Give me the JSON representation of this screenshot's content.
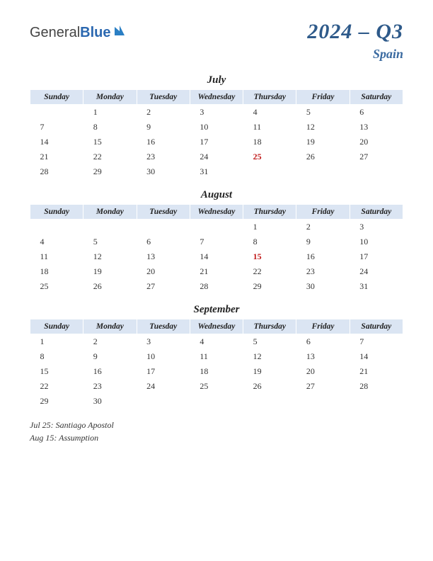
{
  "logo": {
    "part1": "General",
    "part2": "Blue"
  },
  "title": "2024 – Q3",
  "subtitle": "Spain",
  "dayHeaders": [
    "Sunday",
    "Monday",
    "Tuesday",
    "Wednesday",
    "Thursday",
    "Friday",
    "Saturday"
  ],
  "months": [
    {
      "name": "July",
      "weeks": [
        [
          "",
          "1",
          "2",
          "3",
          "4",
          "5",
          "6"
        ],
        [
          "7",
          "8",
          "9",
          "10",
          "11",
          "12",
          "13"
        ],
        [
          "14",
          "15",
          "16",
          "17",
          "18",
          "19",
          "20"
        ],
        [
          "21",
          "22",
          "23",
          "24",
          "25",
          "26",
          "27"
        ],
        [
          "28",
          "29",
          "30",
          "31",
          "",
          "",
          ""
        ]
      ],
      "holidays": [
        "25"
      ]
    },
    {
      "name": "August",
      "weeks": [
        [
          "",
          "",
          "",
          "",
          "1",
          "2",
          "3"
        ],
        [
          "4",
          "5",
          "6",
          "7",
          "8",
          "9",
          "10"
        ],
        [
          "11",
          "12",
          "13",
          "14",
          "15",
          "16",
          "17"
        ],
        [
          "18",
          "19",
          "20",
          "21",
          "22",
          "23",
          "24"
        ],
        [
          "25",
          "26",
          "27",
          "28",
          "29",
          "30",
          "31"
        ]
      ],
      "holidays": [
        "15"
      ]
    },
    {
      "name": "September",
      "weeks": [
        [
          "1",
          "2",
          "3",
          "4",
          "5",
          "6",
          "7"
        ],
        [
          "8",
          "9",
          "10",
          "11",
          "12",
          "13",
          "14"
        ],
        [
          "15",
          "16",
          "17",
          "18",
          "19",
          "20",
          "21"
        ],
        [
          "22",
          "23",
          "24",
          "25",
          "26",
          "27",
          "28"
        ],
        [
          "29",
          "30",
          "",
          "",
          "",
          "",
          ""
        ]
      ],
      "holidays": []
    }
  ],
  "holidayList": [
    "Jul 25: Santiago Apostol",
    "Aug 15: Assumption"
  ],
  "colors": {
    "headerBg": "#dbe5f3",
    "titleColor": "#2e5a8a",
    "holidayColor": "#c01818"
  }
}
